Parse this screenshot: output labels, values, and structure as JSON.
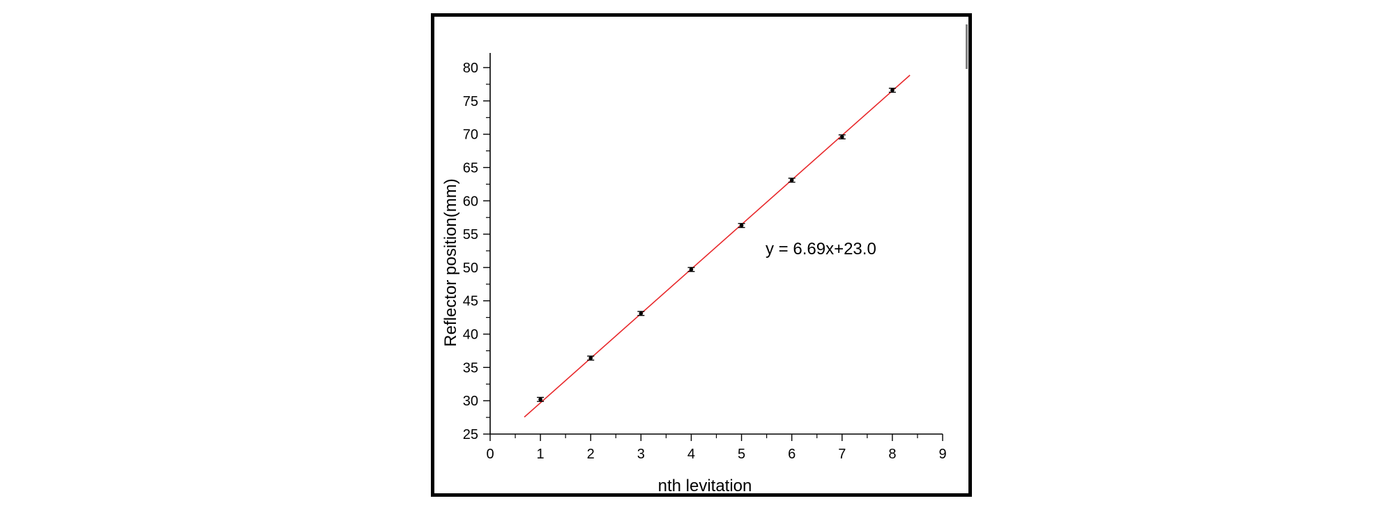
{
  "chart_data": {
    "type": "scatter",
    "title": "",
    "xlabel": "nth levitation",
    "ylabel": "Reflector position(mm)",
    "xlim": [
      0,
      9
    ],
    "ylim": [
      25,
      80
    ],
    "x_ticks": [
      "0",
      "1",
      "2",
      "3",
      "4",
      "5",
      "6",
      "7",
      "8",
      "9"
    ],
    "y_ticks": [
      "25",
      "30",
      "35",
      "40",
      "45",
      "50",
      "55",
      "60",
      "65",
      "70",
      "75",
      "80"
    ],
    "grid": false,
    "legend": "none",
    "series": [
      {
        "x": [
          1,
          2,
          3,
          4,
          5,
          6,
          7,
          8
        ],
        "y": [
          30.2,
          36.4,
          43.1,
          49.7,
          56.3,
          63.1,
          69.6,
          76.6
        ],
        "error": [
          0.3,
          0.3,
          0.3,
          0.3,
          0.3,
          0.3,
          0.3,
          0.3
        ],
        "color": "#000000"
      }
    ],
    "fit": {
      "slope": 6.69,
      "intercept": 23.0,
      "x_range": [
        0.68,
        8.35
      ],
      "color": "#e8282b",
      "label": "y = 6.69x+23.0"
    }
  }
}
